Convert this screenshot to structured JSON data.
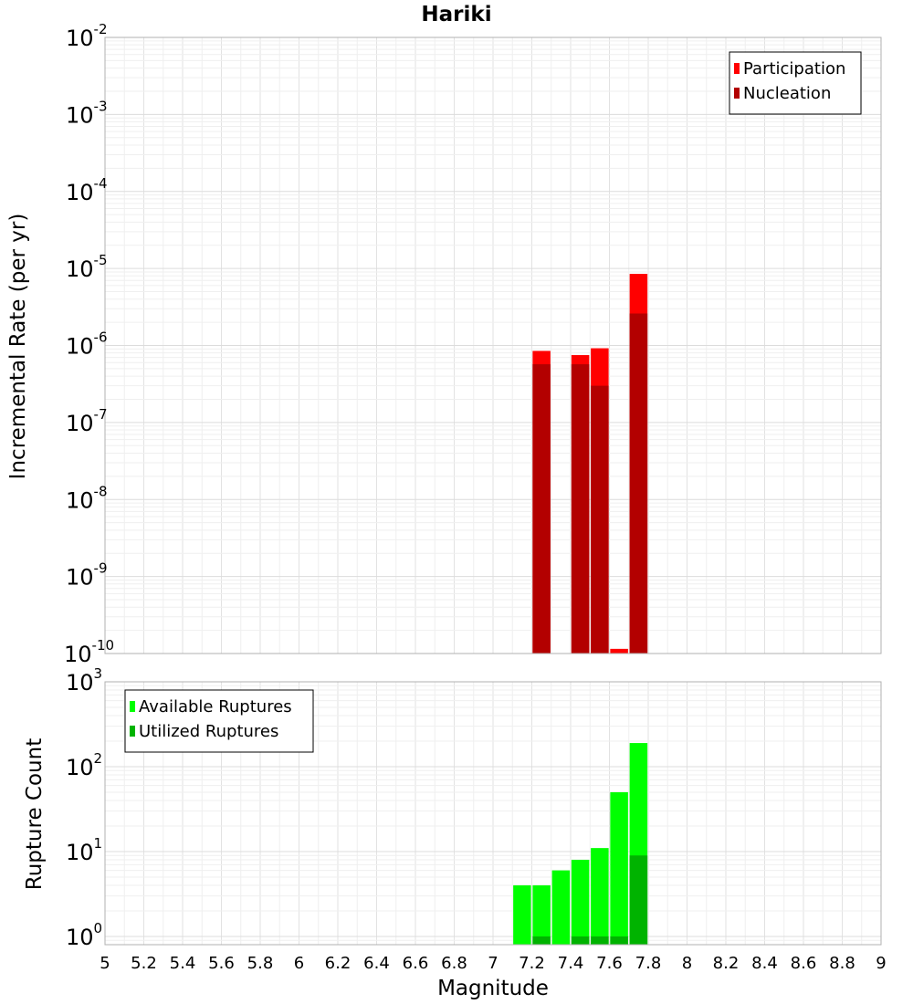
{
  "chart_data": [
    {
      "type": "bar",
      "title": "Hariki",
      "xlabel": "",
      "ylabel": "Incremental Rate (per yr)",
      "yscale": "log",
      "ylim": [
        1e-10,
        0.01
      ],
      "xlim": [
        5,
        9
      ],
      "ytick_labels": [
        {
          "base": "10",
          "exp": "-10"
        },
        {
          "base": "10",
          "exp": "-9"
        },
        {
          "base": "10",
          "exp": "-8"
        },
        {
          "base": "10",
          "exp": "-7"
        },
        {
          "base": "10",
          "exp": "-6"
        },
        {
          "base": "10",
          "exp": "-5"
        },
        {
          "base": "10",
          "exp": "-4"
        },
        {
          "base": "10",
          "exp": "-3"
        },
        {
          "base": "10",
          "exp": "-2"
        }
      ],
      "legend_position": "top-right",
      "grid": true,
      "x": [
        7.25,
        7.45,
        7.55,
        7.65,
        7.75
      ],
      "series": [
        {
          "name": "Participation",
          "color": "#ff0000",
          "values": [
            8.5e-07,
            7.5e-07,
            9.2e-07,
            1.15e-10,
            8.5e-06
          ]
        },
        {
          "name": "Nucleation",
          "color": "#b30000",
          "values": [
            5.7e-07,
            5.7e-07,
            3e-07,
            1e-10,
            2.6e-06
          ]
        }
      ]
    },
    {
      "type": "bar",
      "title": "",
      "xlabel": "Magnitude",
      "ylabel": "Rupture Count",
      "yscale": "log",
      "ylim": [
        0.8,
        1000
      ],
      "xlim": [
        5,
        9
      ],
      "xticks": [
        "5",
        "5.2",
        "5.4",
        "5.6",
        "5.8",
        "6",
        "6.2",
        "6.4",
        "6.6",
        "6.8",
        "7",
        "7.2",
        "7.4",
        "7.6",
        "7.8",
        "8",
        "8.2",
        "8.4",
        "8.6",
        "8.8",
        "9"
      ],
      "ytick_labels": [
        {
          "base": "10",
          "exp": "0"
        },
        {
          "base": "10",
          "exp": "1"
        },
        {
          "base": "10",
          "exp": "2"
        },
        {
          "base": "10",
          "exp": "3"
        }
      ],
      "legend_position": "top-left",
      "grid": true,
      "x": [
        7.15,
        7.25,
        7.35,
        7.45,
        7.55,
        7.65,
        7.75
      ],
      "series": [
        {
          "name": "Available Ruptures",
          "color": "#00ff00",
          "values": [
            4,
            4,
            6,
            8,
            11,
            50,
            190
          ]
        },
        {
          "name": "Utilized Ruptures",
          "color": "#00b300",
          "values": [
            0,
            1,
            0,
            1,
            1,
            1,
            9
          ]
        }
      ]
    }
  ]
}
